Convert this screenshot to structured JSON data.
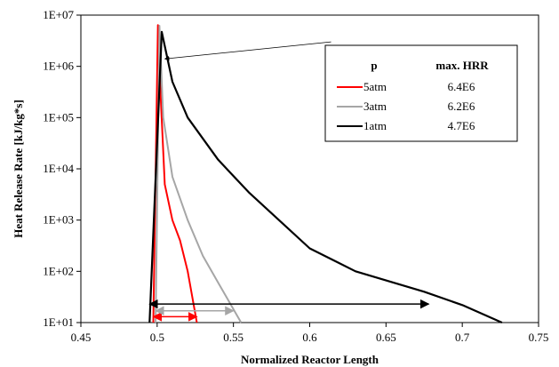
{
  "chart_data": {
    "type": "line",
    "xlabel": "Normalized Reactor Length",
    "ylabel": "Heat Release Rate [kJ/kg*s]",
    "xlim": [
      0.45,
      0.75
    ],
    "ylim": [
      10,
      10000000
    ],
    "yscale": "log",
    "grid": false,
    "x_ticks": [
      0.45,
      0.5,
      0.55,
      0.6,
      0.65,
      0.7,
      0.75
    ],
    "x_tick_labels": [
      "0.45",
      "0.5",
      "0.55",
      "0.6",
      "0.65",
      "0.7",
      "0.75"
    ],
    "y_ticks": [
      10,
      100,
      1000,
      10000,
      100000,
      1000000,
      10000000
    ],
    "y_tick_labels": [
      "1E+01",
      "1E+02",
      "1E+03",
      "1E+04",
      "1E+05",
      "1E+06",
      "1E+07"
    ],
    "series": [
      {
        "name": "5atm",
        "color": "#ff0000",
        "x": [
          0.4975,
          0.5005,
          0.5025,
          0.505,
          0.51,
          0.515,
          0.52,
          0.526
        ],
        "y": [
          10,
          6400000,
          200000,
          5000,
          1000,
          400,
          100,
          10
        ]
      },
      {
        "name": "3atm",
        "color": "#a6a6a6",
        "x": [
          0.499,
          0.5015,
          0.504,
          0.51,
          0.52,
          0.53,
          0.54,
          0.555
        ],
        "y": [
          10,
          6200000,
          100000,
          7000,
          1000,
          200,
          60,
          10
        ]
      },
      {
        "name": "1atm",
        "color": "#000000",
        "x": [
          0.495,
          0.503,
          0.51,
          0.52,
          0.54,
          0.56,
          0.6,
          0.63,
          0.675,
          0.7,
          0.726
        ],
        "y": [
          10,
          4700000,
          500000,
          100000,
          15000,
          3500,
          280,
          100,
          40,
          22,
          10
        ]
      }
    ],
    "legend": {
      "position": "top-right",
      "header_p": "p",
      "header_hrr": "max. HRR",
      "entries": [
        {
          "label": "5atm",
          "hrr": "6.4E6",
          "color": "#ff0000"
        },
        {
          "label": "3atm",
          "hrr": "6.2E6",
          "color": "#a6a6a6"
        },
        {
          "label": "1atm",
          "hrr": "4.7E6",
          "color": "#000000"
        }
      ]
    },
    "annotations": [
      {
        "type": "arrow",
        "from": [
          0.614,
          3000000
        ],
        "to": [
          0.505,
          1400000
        ],
        "color": "#000000"
      },
      {
        "type": "double_arrow",
        "x": [
          0.4975,
          0.526
        ],
        "y": 13,
        "color": "#ff0000"
      },
      {
        "type": "double_arrow",
        "x": [
          0.499,
          0.55
        ],
        "y": 17,
        "color": "#a6a6a6"
      },
      {
        "type": "double_arrow",
        "x": [
          0.495,
          0.678
        ],
        "y": 23,
        "color": "#000000"
      }
    ]
  }
}
